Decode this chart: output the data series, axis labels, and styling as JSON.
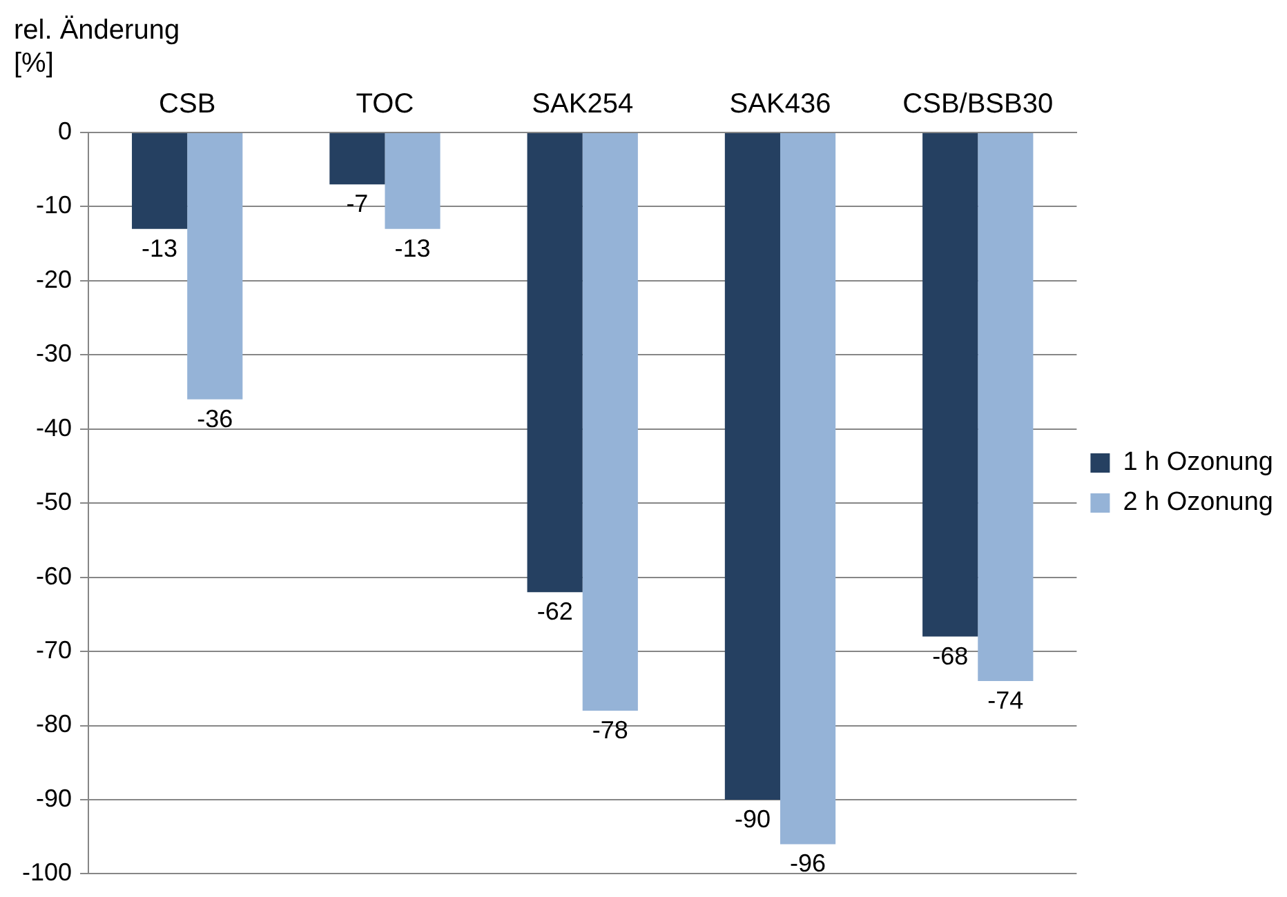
{
  "chart_data": {
    "type": "bar",
    "ylabel": "rel. Änderung [%]",
    "categories": [
      "CSB",
      "TOC",
      "SAK254",
      "SAK436",
      "CSB/BSB30"
    ],
    "series": [
      {
        "name": "1 h Ozonung",
        "color": "#254061",
        "values": [
          -13,
          -7,
          -62,
          -90,
          -68
        ]
      },
      {
        "name": "2 h Ozonung",
        "color": "#95b3d7",
        "values": [
          -36,
          -13,
          -78,
          -96,
          -74
        ]
      }
    ],
    "ylim": [
      -100,
      0
    ],
    "yticks": [
      0,
      -10,
      -20,
      -30,
      -40,
      -50,
      -60,
      -70,
      -80,
      -90,
      -100
    ],
    "grid": "y",
    "legend": "right",
    "data_labels": true
  }
}
